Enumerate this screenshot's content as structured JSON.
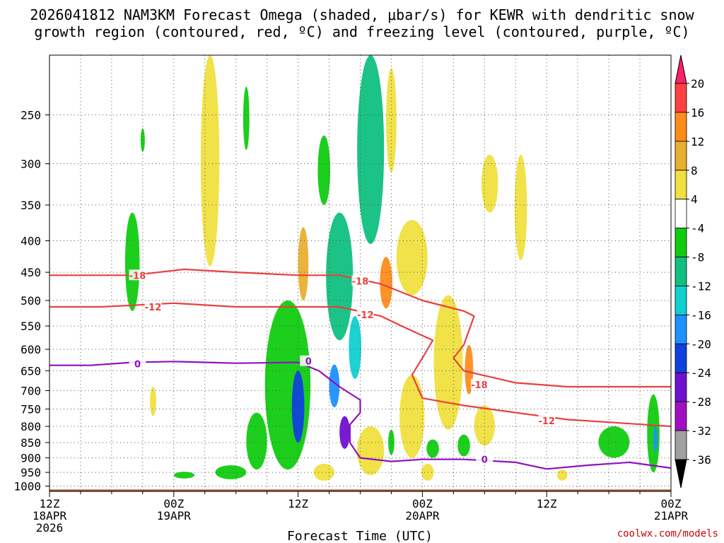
{
  "header": {
    "line1": "2026041812 NAM3KM Forecast Omega (shaded, μbar/s) for KEWR with dendritic snow",
    "line2": "growth region (contoured, red, ºC) and freezing level (contoured, purple, ºC)"
  },
  "footer": {
    "credit": "coolwx.com/models"
  },
  "chart_data": {
    "type": "heatmap",
    "title": "2026041812 NAM3KM Forecast Omega (shaded, μbar/s) for KEWR with dendritic snow growth region (contoured, red, ºC) and freezing level (contoured, purple, ºC)",
    "xlabel": "Forecast Time (UTC)",
    "ylabel": "",
    "x_unit": "forecast hour",
    "xlim": [
      0,
      60
    ],
    "y_unit": "hPa",
    "ylim": [
      1020,
      200
    ],
    "y_scale": "log",
    "x_ticks": [
      {
        "hour": 0,
        "lines": [
          "12Z",
          "18APR",
          "2026"
        ]
      },
      {
        "hour": 12,
        "lines": [
          "00Z",
          "19APR"
        ]
      },
      {
        "hour": 24,
        "lines": [
          "12Z"
        ]
      },
      {
        "hour": 36,
        "lines": [
          "00Z",
          "20APR"
        ]
      },
      {
        "hour": 48,
        "lines": [
          "12Z"
        ]
      },
      {
        "hour": 60,
        "lines": [
          "00Z",
          "21APR"
        ]
      }
    ],
    "y_ticks": [
      250,
      300,
      350,
      400,
      450,
      500,
      550,
      600,
      650,
      700,
      750,
      800,
      850,
      900,
      950,
      1000
    ],
    "grid": true,
    "colorbar": {
      "levels": [
        20,
        16,
        12,
        8,
        4,
        -4,
        -8,
        -12,
        -16,
        -20,
        -24,
        -28,
        -32,
        -36
      ],
      "colors": [
        "#ff1f6a",
        "#ff4040",
        "#ff8c1a",
        "#e8b030",
        "#f0e040",
        "#ffffff",
        "#10cc10",
        "#10c080",
        "#10d0d0",
        "#1e90ff",
        "#1040e0",
        "#7010d0",
        "#a010c0",
        "#a0a0a0",
        "#000000"
      ],
      "labels": [
        "20",
        "16",
        "12",
        "8",
        "4",
        "-4",
        "-8",
        "-12",
        "-16",
        "-20",
        "-24",
        "-28",
        "-32",
        "-36"
      ]
    },
    "contours": [
      {
        "name": "-18C isotherm",
        "label": "-18",
        "color": "#e84040",
        "points": [
          [
            0,
            455
          ],
          [
            8,
            455
          ],
          [
            13,
            445
          ],
          [
            18,
            450
          ],
          [
            24,
            455
          ],
          [
            28,
            455
          ],
          [
            32,
            470
          ],
          [
            36,
            500
          ],
          [
            40,
            520
          ],
          [
            41,
            530
          ],
          [
            40,
            590
          ],
          [
            39,
            620
          ],
          [
            40,
            650
          ],
          [
            45,
            680
          ],
          [
            50,
            690
          ],
          [
            55,
            690
          ],
          [
            60,
            690
          ]
        ]
      },
      {
        "name": "-12C isotherm",
        "label": "-12",
        "color": "#e84040",
        "points": [
          [
            0,
            512
          ],
          [
            5,
            512
          ],
          [
            12,
            505
          ],
          [
            18,
            512
          ],
          [
            24,
            512
          ],
          [
            28,
            512
          ],
          [
            32,
            530
          ],
          [
            34,
            550
          ],
          [
            36,
            570
          ],
          [
            37,
            580
          ],
          [
            36,
            620
          ],
          [
            35,
            660
          ],
          [
            36,
            720
          ],
          [
            40,
            740
          ],
          [
            45,
            760
          ],
          [
            50,
            780
          ],
          [
            55,
            790
          ],
          [
            60,
            800
          ]
        ]
      },
      {
        "name": "0C freezing level",
        "label": "0",
        "color": "#9010c0",
        "points": [
          [
            0,
            637
          ],
          [
            4,
            637
          ],
          [
            8,
            630
          ],
          [
            12,
            628
          ],
          [
            15,
            630
          ],
          [
            18,
            632
          ],
          [
            24,
            630
          ],
          [
            26,
            650
          ],
          [
            28,
            690
          ],
          [
            30,
            725
          ],
          [
            30,
            760
          ],
          [
            29,
            795
          ],
          [
            29,
            850
          ],
          [
            30,
            900
          ],
          [
            33,
            912
          ],
          [
            36,
            905
          ],
          [
            40,
            905
          ],
          [
            45,
            915
          ],
          [
            48,
            938
          ],
          [
            52,
            925
          ],
          [
            56,
            915
          ],
          [
            60,
            935
          ]
        ]
      }
    ],
    "contour_labels": [
      {
        "text": "-18",
        "hour": 8.5,
        "hPa": 455
      },
      {
        "text": "-18",
        "hour": 30,
        "hPa": 465
      },
      {
        "text": "-18",
        "hour": 41.5,
        "hPa": 685
      },
      {
        "text": "-12",
        "hour": 10,
        "hPa": 512
      },
      {
        "text": "-12",
        "hour": 30.5,
        "hPa": 527
      },
      {
        "text": "-12",
        "hour": 48,
        "hPa": 783
      },
      {
        "text": "0",
        "hour": 8.5,
        "hPa": 633
      },
      {
        "text": "0",
        "hour": 25,
        "hPa": 627
      },
      {
        "text": "0",
        "hour": 42,
        "hPa": 905
      }
    ],
    "omega_cells": [
      {
        "hour": 8,
        "hPa": 440,
        "omega": -8,
        "dh": 0.7,
        "dp": 80
      },
      {
        "hour": 15.5,
        "hPa": 320,
        "omega": 4,
        "dh": 0.9,
        "dp": 120
      },
      {
        "hour": 19,
        "hPa": 255,
        "omega": -8,
        "dh": 0.3,
        "dp": 30
      },
      {
        "hour": 9,
        "hPa": 275,
        "omega": -8,
        "dh": 0.2,
        "dp": 12
      },
      {
        "hour": 24.5,
        "hPa": 440,
        "omega": 8,
        "dh": 0.5,
        "dp": 60
      },
      {
        "hour": 26.5,
        "hPa": 310,
        "omega": -8,
        "dh": 0.6,
        "dp": 40
      },
      {
        "hour": 28,
        "hPa": 470,
        "omega": -12,
        "dh": 1.3,
        "dp": 110
      },
      {
        "hour": 31,
        "hPa": 285,
        "omega": -12,
        "dh": 1.3,
        "dp": 120
      },
      {
        "hour": 33,
        "hPa": 260,
        "omega": 4,
        "dh": 0.5,
        "dp": 50
      },
      {
        "hour": 32.5,
        "hPa": 470,
        "omega": 12,
        "dh": 0.6,
        "dp": 45
      },
      {
        "hour": 35,
        "hPa": 430,
        "omega": 4,
        "dh": 1.5,
        "dp": 60
      },
      {
        "hour": 42.5,
        "hPa": 325,
        "omega": 4,
        "dh": 0.8,
        "dp": 35
      },
      {
        "hour": 38.5,
        "hPa": 650,
        "omega": 4,
        "dh": 1.4,
        "dp": 160
      },
      {
        "hour": 40.5,
        "hPa": 650,
        "omega": 12,
        "dh": 0.4,
        "dp": 60
      },
      {
        "hour": 23,
        "hPa": 720,
        "omega": -8,
        "dh": 2.2,
        "dp": 220
      },
      {
        "hour": 24,
        "hPa": 750,
        "omega": -24,
        "dh": 0.6,
        "dp": 100
      },
      {
        "hour": 27.5,
        "hPa": 690,
        "omega": -20,
        "dh": 0.5,
        "dp": 55
      },
      {
        "hour": 28.5,
        "hPa": 820,
        "omega": -28,
        "dh": 0.5,
        "dp": 50
      },
      {
        "hour": 29.5,
        "hPa": 600,
        "omega": -16,
        "dh": 0.6,
        "dp": 70
      },
      {
        "hour": 20,
        "hPa": 850,
        "omega": -8,
        "dh": 1.0,
        "dp": 90
      },
      {
        "hour": 17.5,
        "hPa": 950,
        "omega": -8,
        "dh": 1.5,
        "dp": 25
      },
      {
        "hour": 31,
        "hPa": 880,
        "omega": 4,
        "dh": 1.3,
        "dp": 80
      },
      {
        "hour": 35,
        "hPa": 780,
        "omega": 4,
        "dh": 1.2,
        "dp": 120
      },
      {
        "hour": 33,
        "hPa": 850,
        "omega": -8,
        "dh": 0.3,
        "dp": 40
      },
      {
        "hour": 37,
        "hPa": 870,
        "omega": -8,
        "dh": 0.6,
        "dp": 30
      },
      {
        "hour": 40,
        "hPa": 860,
        "omega": -8,
        "dh": 0.6,
        "dp": 35
      },
      {
        "hour": 42,
        "hPa": 800,
        "omega": 4,
        "dh": 1.0,
        "dp": 60
      },
      {
        "hour": 13,
        "hPa": 960,
        "omega": -8,
        "dh": 1.0,
        "dp": 12
      },
      {
        "hour": 10,
        "hPa": 730,
        "omega": 4,
        "dh": 0.3,
        "dp": 40
      },
      {
        "hour": 54.5,
        "hPa": 850,
        "omega": -8,
        "dh": 1.5,
        "dp": 50
      },
      {
        "hour": 58.3,
        "hPa": 830,
        "omega": -8,
        "dh": 0.6,
        "dp": 120
      },
      {
        "hour": 58.5,
        "hPa": 840,
        "omega": -20,
        "dh": 0.2,
        "dp": 40
      },
      {
        "hour": 45.5,
        "hPa": 360,
        "omega": 4,
        "dh": 0.6,
        "dp": 70
      },
      {
        "hour": 49.5,
        "hPa": 960,
        "omega": 4,
        "dh": 0.5,
        "dp": 20
      },
      {
        "hour": 26.5,
        "hPa": 950,
        "omega": 4,
        "dh": 1.0,
        "dp": 30
      },
      {
        "hour": 36.5,
        "hPa": 950,
        "omega": 4,
        "dh": 0.6,
        "dp": 30
      }
    ],
    "terrain": {
      "label": "surface/below ground",
      "top_hPa": 1013,
      "color": "#a0522d"
    }
  }
}
